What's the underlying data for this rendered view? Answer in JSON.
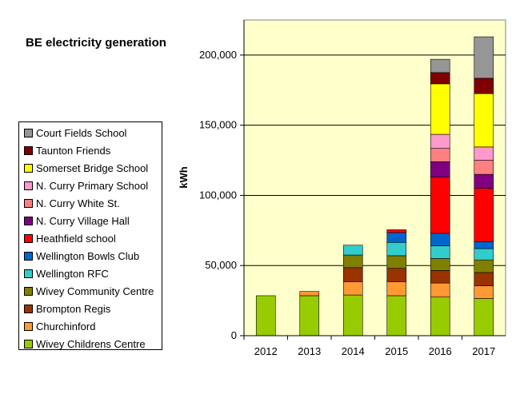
{
  "chart_data": {
    "type": "bar",
    "stacked": true,
    "title": "BE electricity generation",
    "xlabel": "",
    "ylabel": "kWh",
    "ylim": [
      0,
      225000
    ],
    "yticks": [
      0,
      50000,
      100000,
      150000,
      200000
    ],
    "ytick_labels": [
      "0",
      "50,000",
      "100,000",
      "150,000",
      "200,000"
    ],
    "categories": [
      "2012",
      "2013",
      "2014",
      "2015",
      "2016",
      "2017"
    ],
    "grid": "horizontal",
    "legend_position": "left",
    "plot_background": "#FFFFCC",
    "series": [
      {
        "name": "Wivey Childrens Centre",
        "color": "#99CC00",
        "values": [
          28500,
          28500,
          29000,
          28500,
          27500,
          26500
        ]
      },
      {
        "name": "Churchinford",
        "color": "#FF9933",
        "values": [
          0,
          3000,
          9500,
          10000,
          10000,
          9000
        ]
      },
      {
        "name": "Brompton Regis",
        "color": "#993300",
        "values": [
          0,
          0,
          10000,
          9500,
          9000,
          9500
        ]
      },
      {
        "name": "Wivey Community Centre",
        "color": "#808000",
        "values": [
          0,
          0,
          9000,
          9000,
          8500,
          9000
        ]
      },
      {
        "name": "Wellington RFC",
        "color": "#33CCCC",
        "values": [
          0,
          0,
          7000,
          9500,
          9000,
          8000
        ]
      },
      {
        "name": "Wellington Bowls Club",
        "color": "#0066CC",
        "values": [
          0,
          0,
          0,
          7000,
          9000,
          5000
        ]
      },
      {
        "name": "Heathfield school",
        "color": "#FF0000",
        "values": [
          0,
          0,
          0,
          2000,
          40000,
          38000
        ]
      },
      {
        "name": "N. Curry Village Hall",
        "color": "#800080",
        "values": [
          0,
          0,
          0,
          0,
          11000,
          10000
        ]
      },
      {
        "name": "N. Curry White St.",
        "color": "#FF8080",
        "values": [
          0,
          0,
          0,
          0,
          9500,
          10000
        ]
      },
      {
        "name": "N. Curry Primary School",
        "color": "#FF99CC",
        "values": [
          0,
          0,
          0,
          0,
          10000,
          9500
        ]
      },
      {
        "name": "Somerset Bridge School",
        "color": "#FFFF00",
        "values": [
          0,
          0,
          0,
          0,
          36000,
          38000
        ]
      },
      {
        "name": "Taunton Friends",
        "color": "#800000",
        "values": [
          0,
          0,
          0,
          0,
          8000,
          11000
        ]
      },
      {
        "name": "Court Fields School",
        "color": "#969696",
        "values": [
          0,
          0,
          0,
          0,
          9500,
          29500
        ]
      }
    ]
  }
}
